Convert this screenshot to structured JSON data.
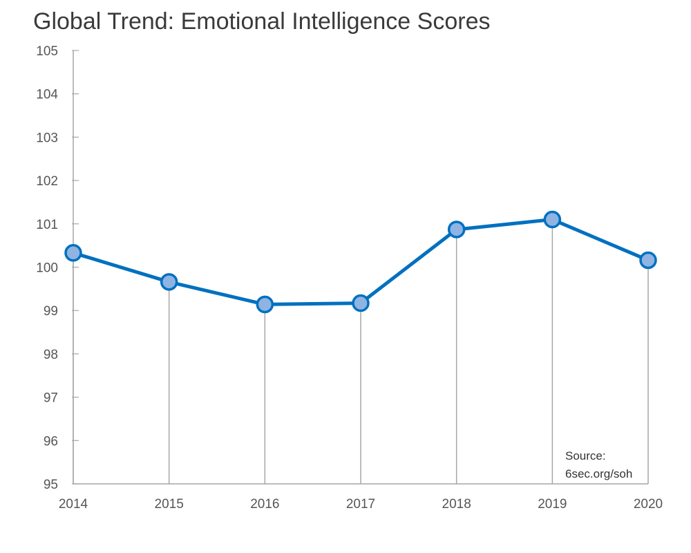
{
  "chart_data": {
    "type": "line",
    "title": "Global Trend: Emotional Intelligence Scores",
    "xlabel": "",
    "ylabel": "",
    "categories": [
      "2014",
      "2015",
      "2016",
      "2017",
      "2018",
      "2019",
      "2020"
    ],
    "series": [
      {
        "values": [
          100.33,
          99.66,
          99.14,
          99.17,
          100.87,
          101.1,
          100.16
        ],
        "color": "#0070c0",
        "marker_fill": "#8fb4e3"
      }
    ],
    "ylim": [
      95,
      105
    ],
    "yticks": [
      95,
      96,
      97,
      98,
      99,
      100,
      101,
      102,
      103,
      104,
      105
    ],
    "grid": false,
    "drop_lines": true,
    "legend": "none",
    "source": {
      "line1": "Source:",
      "line2": "6sec.org/soh"
    }
  }
}
